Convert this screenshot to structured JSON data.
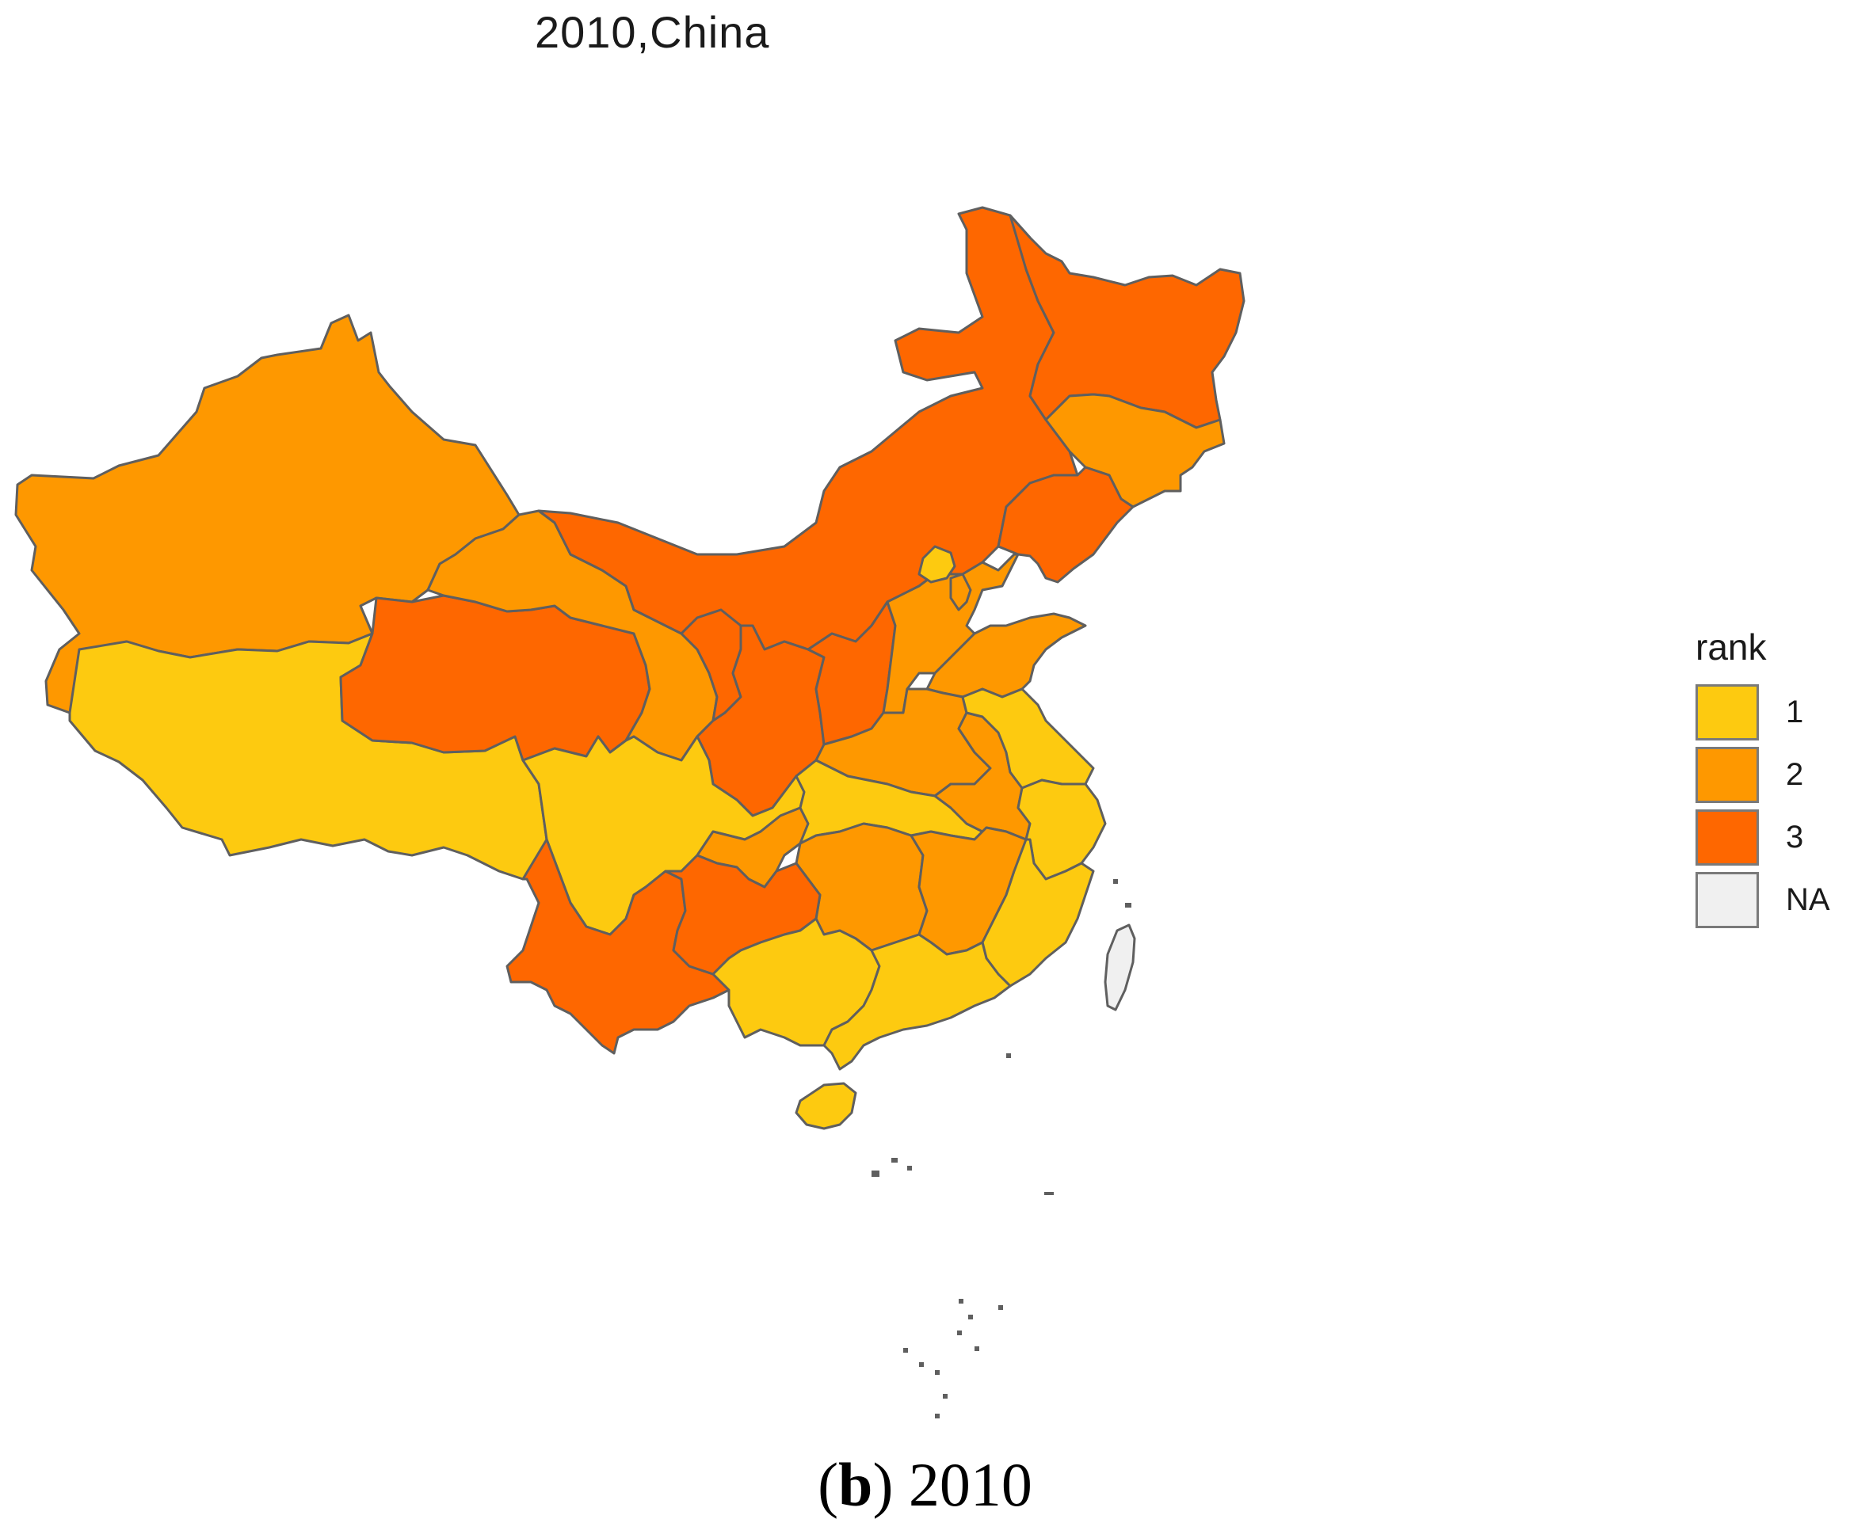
{
  "title": "2010,China",
  "caption": {
    "prefix": "(",
    "letter": "b",
    "suffix": ") 2010"
  },
  "colors": {
    "rank1": "#FDCA10",
    "rank2": "#FE9800",
    "rank3": "#FE6700",
    "na": "#F0F0F0",
    "border": "#5f5f5f"
  },
  "legend": {
    "title": "rank",
    "items": [
      {
        "label": "1",
        "color": "#FDCA10"
      },
      {
        "label": "2",
        "color": "#FE9800"
      },
      {
        "label": "3",
        "color": "#FE6700"
      },
      {
        "label": "NA",
        "color": "#F0F0F0"
      }
    ]
  },
  "regions": [
    {
      "id": "xinjiang",
      "rank": 2
    },
    {
      "id": "tibet",
      "rank": 1
    },
    {
      "id": "qinghai",
      "rank": 3
    },
    {
      "id": "gansu",
      "rank": 2
    },
    {
      "id": "inner-mongolia",
      "rank": 3
    },
    {
      "id": "heilongjiang",
      "rank": 3
    },
    {
      "id": "jilin",
      "rank": 2
    },
    {
      "id": "liaoning",
      "rank": 3
    },
    {
      "id": "ningxia",
      "rank": 3
    },
    {
      "id": "shaanxi",
      "rank": 3
    },
    {
      "id": "shanxi",
      "rank": 3
    },
    {
      "id": "hebei",
      "rank": 2
    },
    {
      "id": "beijing",
      "rank": 1
    },
    {
      "id": "tianjin",
      "rank": 2
    },
    {
      "id": "shandong",
      "rank": 2
    },
    {
      "id": "henan",
      "rank": 2
    },
    {
      "id": "sichuan",
      "rank": 1
    },
    {
      "id": "chongqing",
      "rank": 2
    },
    {
      "id": "hubei",
      "rank": 1
    },
    {
      "id": "anhui",
      "rank": 2
    },
    {
      "id": "jiangsu",
      "rank": 1
    },
    {
      "id": "zhejiang",
      "rank": 1
    },
    {
      "id": "hunan",
      "rank": 2
    },
    {
      "id": "jiangxi",
      "rank": 2
    },
    {
      "id": "fujian",
      "rank": 1
    },
    {
      "id": "yunnan",
      "rank": 3
    },
    {
      "id": "guizhou",
      "rank": 3
    },
    {
      "id": "guangxi",
      "rank": 1
    },
    {
      "id": "guangdong",
      "rank": 1
    },
    {
      "id": "hainan",
      "rank": 1
    },
    {
      "id": "taiwan",
      "rank": "NA"
    }
  ]
}
